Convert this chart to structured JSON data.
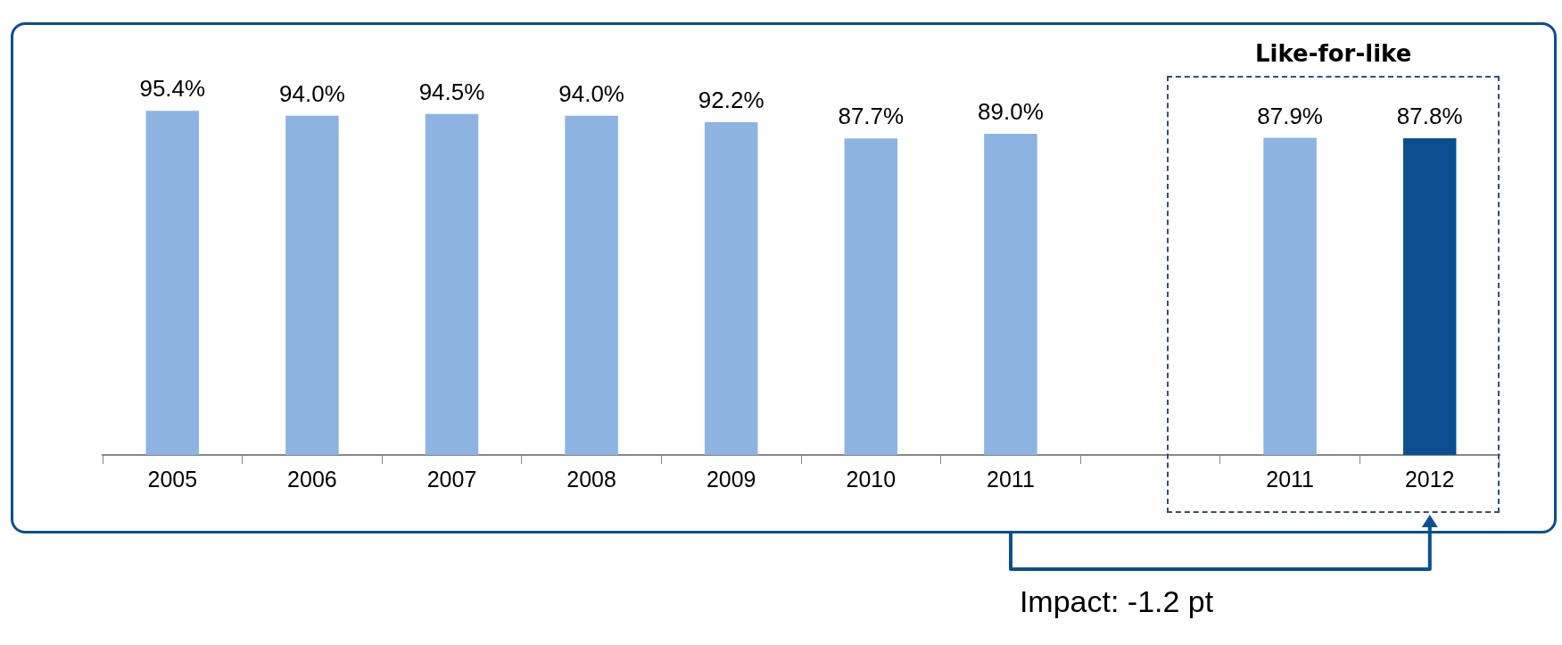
{
  "chart_data": {
    "type": "bar",
    "categories": [
      "2005",
      "2006",
      "2007",
      "2008",
      "2009",
      "2010",
      "2011",
      null,
      "2011",
      "2012"
    ],
    "values": [
      95.4,
      94.0,
      94.5,
      94.0,
      92.2,
      87.7,
      89.0,
      null,
      87.9,
      87.8
    ],
    "colors": [
      "#8db3e2",
      "#8db3e2",
      "#8db3e2",
      "#8db3e2",
      "#8db3e2",
      "#8db3e2",
      "#8db3e2",
      "#8db3e2",
      "#8db3e2",
      "#0b4f91"
    ],
    "value_labels": [
      "95.4%",
      "94.0%",
      "94.5%",
      "94.0%",
      "92.2%",
      "87.7%",
      "89.0%",
      null,
      "87.9%",
      "87.8%"
    ],
    "annotations": [
      "Like-for-like",
      "Impact: -1.2 pt"
    ]
  }
}
